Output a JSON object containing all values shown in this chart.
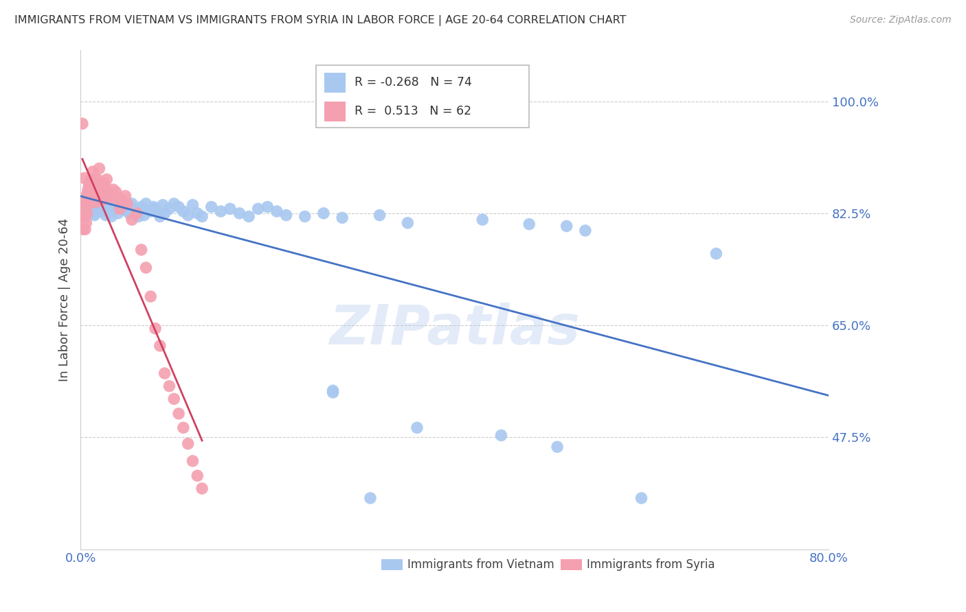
{
  "title": "IMMIGRANTS FROM VIETNAM VS IMMIGRANTS FROM SYRIA IN LABOR FORCE | AGE 20-64 CORRELATION CHART",
  "source": "Source: ZipAtlas.com",
  "ylabel": "In Labor Force | Age 20-64",
  "y_tick_values": [
    0.475,
    0.65,
    0.825,
    1.0
  ],
  "y_tick_labels": [
    "47.5%",
    "65.0%",
    "82.5%",
    "100.0%"
  ],
  "xlim": [
    0.0,
    0.8
  ],
  "ylim": [
    0.3,
    1.08
  ],
  "x_ticks": [
    0.0,
    0.1,
    0.2,
    0.3,
    0.4,
    0.5,
    0.6,
    0.7,
    0.8
  ],
  "x_tick_labels": [
    "0.0%",
    "",
    "",
    "",
    "",
    "",
    "",
    "",
    "80.0%"
  ],
  "watermark_text": "ZIPatlas",
  "legend_r1": "R = -0.268",
  "legend_n1": "N = 74",
  "legend_r2": "R =  0.513",
  "legend_n2": "N = 62",
  "color_vietnam": "#a8c8f0",
  "color_vietnam_line": "#4472c4",
  "color_syria": "#f4a0b0",
  "color_syria_line": "#d04060",
  "color_axis_text": "#4472c4",
  "color_grid": "#cccccc",
  "title_color": "#333333",
  "source_color": "#999999",
  "vietnam_x": [
    0.005,
    0.007,
    0.008,
    0.009,
    0.012,
    0.013,
    0.014,
    0.014,
    0.015,
    0.015,
    0.016,
    0.017,
    0.018,
    0.02,
    0.021,
    0.022,
    0.023,
    0.024,
    0.025,
    0.026,
    0.027,
    0.028,
    0.029,
    0.03,
    0.032,
    0.033,
    0.035,
    0.036,
    0.04,
    0.042,
    0.045,
    0.047,
    0.05,
    0.052,
    0.055,
    0.058,
    0.06,
    0.062,
    0.065,
    0.068,
    0.07,
    0.075,
    0.078,
    0.08,
    0.085,
    0.088,
    0.09,
    0.095,
    0.1,
    0.105,
    0.11,
    0.115,
    0.12,
    0.125,
    0.13,
    0.14,
    0.15,
    0.16,
    0.17,
    0.18,
    0.19,
    0.2,
    0.21,
    0.22,
    0.24,
    0.26,
    0.28,
    0.32,
    0.35,
    0.43,
    0.48,
    0.52,
    0.54,
    0.68
  ],
  "vietnam_y": [
    0.836,
    0.843,
    0.851,
    0.828,
    0.84,
    0.832,
    0.825,
    0.838,
    0.845,
    0.822,
    0.835,
    0.84,
    0.838,
    0.842,
    0.828,
    0.835,
    0.84,
    0.832,
    0.838,
    0.845,
    0.822,
    0.83,
    0.84,
    0.832,
    0.835,
    0.82,
    0.838,
    0.845,
    0.825,
    0.832,
    0.84,
    0.83,
    0.838,
    0.825,
    0.84,
    0.828,
    0.832,
    0.82,
    0.835,
    0.822,
    0.84,
    0.828,
    0.835,
    0.832,
    0.82,
    0.838,
    0.825,
    0.832,
    0.84,
    0.835,
    0.828,
    0.822,
    0.838,
    0.825,
    0.82,
    0.835,
    0.828,
    0.832,
    0.825,
    0.82,
    0.832,
    0.835,
    0.828,
    0.822,
    0.82,
    0.825,
    0.818,
    0.822,
    0.81,
    0.815,
    0.808,
    0.805,
    0.798,
    0.762
  ],
  "vietnam_outliers_x": [
    0.27,
    0.27,
    0.31,
    0.36,
    0.45,
    0.51,
    0.6
  ],
  "vietnam_outliers_y": [
    0.548,
    0.545,
    0.38,
    0.49,
    0.478,
    0.46,
    0.38
  ],
  "syria_x": [
    0.002,
    0.003,
    0.003,
    0.004,
    0.004,
    0.005,
    0.005,
    0.005,
    0.006,
    0.006,
    0.007,
    0.007,
    0.008,
    0.008,
    0.009,
    0.009,
    0.01,
    0.01,
    0.011,
    0.012,
    0.013,
    0.014,
    0.015,
    0.016,
    0.017,
    0.018,
    0.019,
    0.02,
    0.021,
    0.022,
    0.023,
    0.024,
    0.025,
    0.026,
    0.027,
    0.028,
    0.029,
    0.03,
    0.032,
    0.035,
    0.038,
    0.04,
    0.042,
    0.045,
    0.048,
    0.05,
    0.055,
    0.06,
    0.065,
    0.07,
    0.075,
    0.08,
    0.085,
    0.09,
    0.095,
    0.1,
    0.105,
    0.11,
    0.115,
    0.12,
    0.125,
    0.13
  ],
  "syria_y": [
    0.965,
    0.83,
    0.8,
    0.88,
    0.82,
    0.838,
    0.82,
    0.8,
    0.845,
    0.81,
    0.855,
    0.825,
    0.862,
    0.848,
    0.87,
    0.84,
    0.875,
    0.852,
    0.865,
    0.872,
    0.89,
    0.858,
    0.878,
    0.842,
    0.862,
    0.878,
    0.858,
    0.895,
    0.858,
    0.862,
    0.845,
    0.868,
    0.872,
    0.858,
    0.865,
    0.878,
    0.858,
    0.852,
    0.848,
    0.862,
    0.858,
    0.848,
    0.832,
    0.845,
    0.852,
    0.84,
    0.815,
    0.825,
    0.768,
    0.74,
    0.695,
    0.645,
    0.618,
    0.575,
    0.555,
    0.535,
    0.512,
    0.49,
    0.465,
    0.438,
    0.415,
    0.395
  ]
}
